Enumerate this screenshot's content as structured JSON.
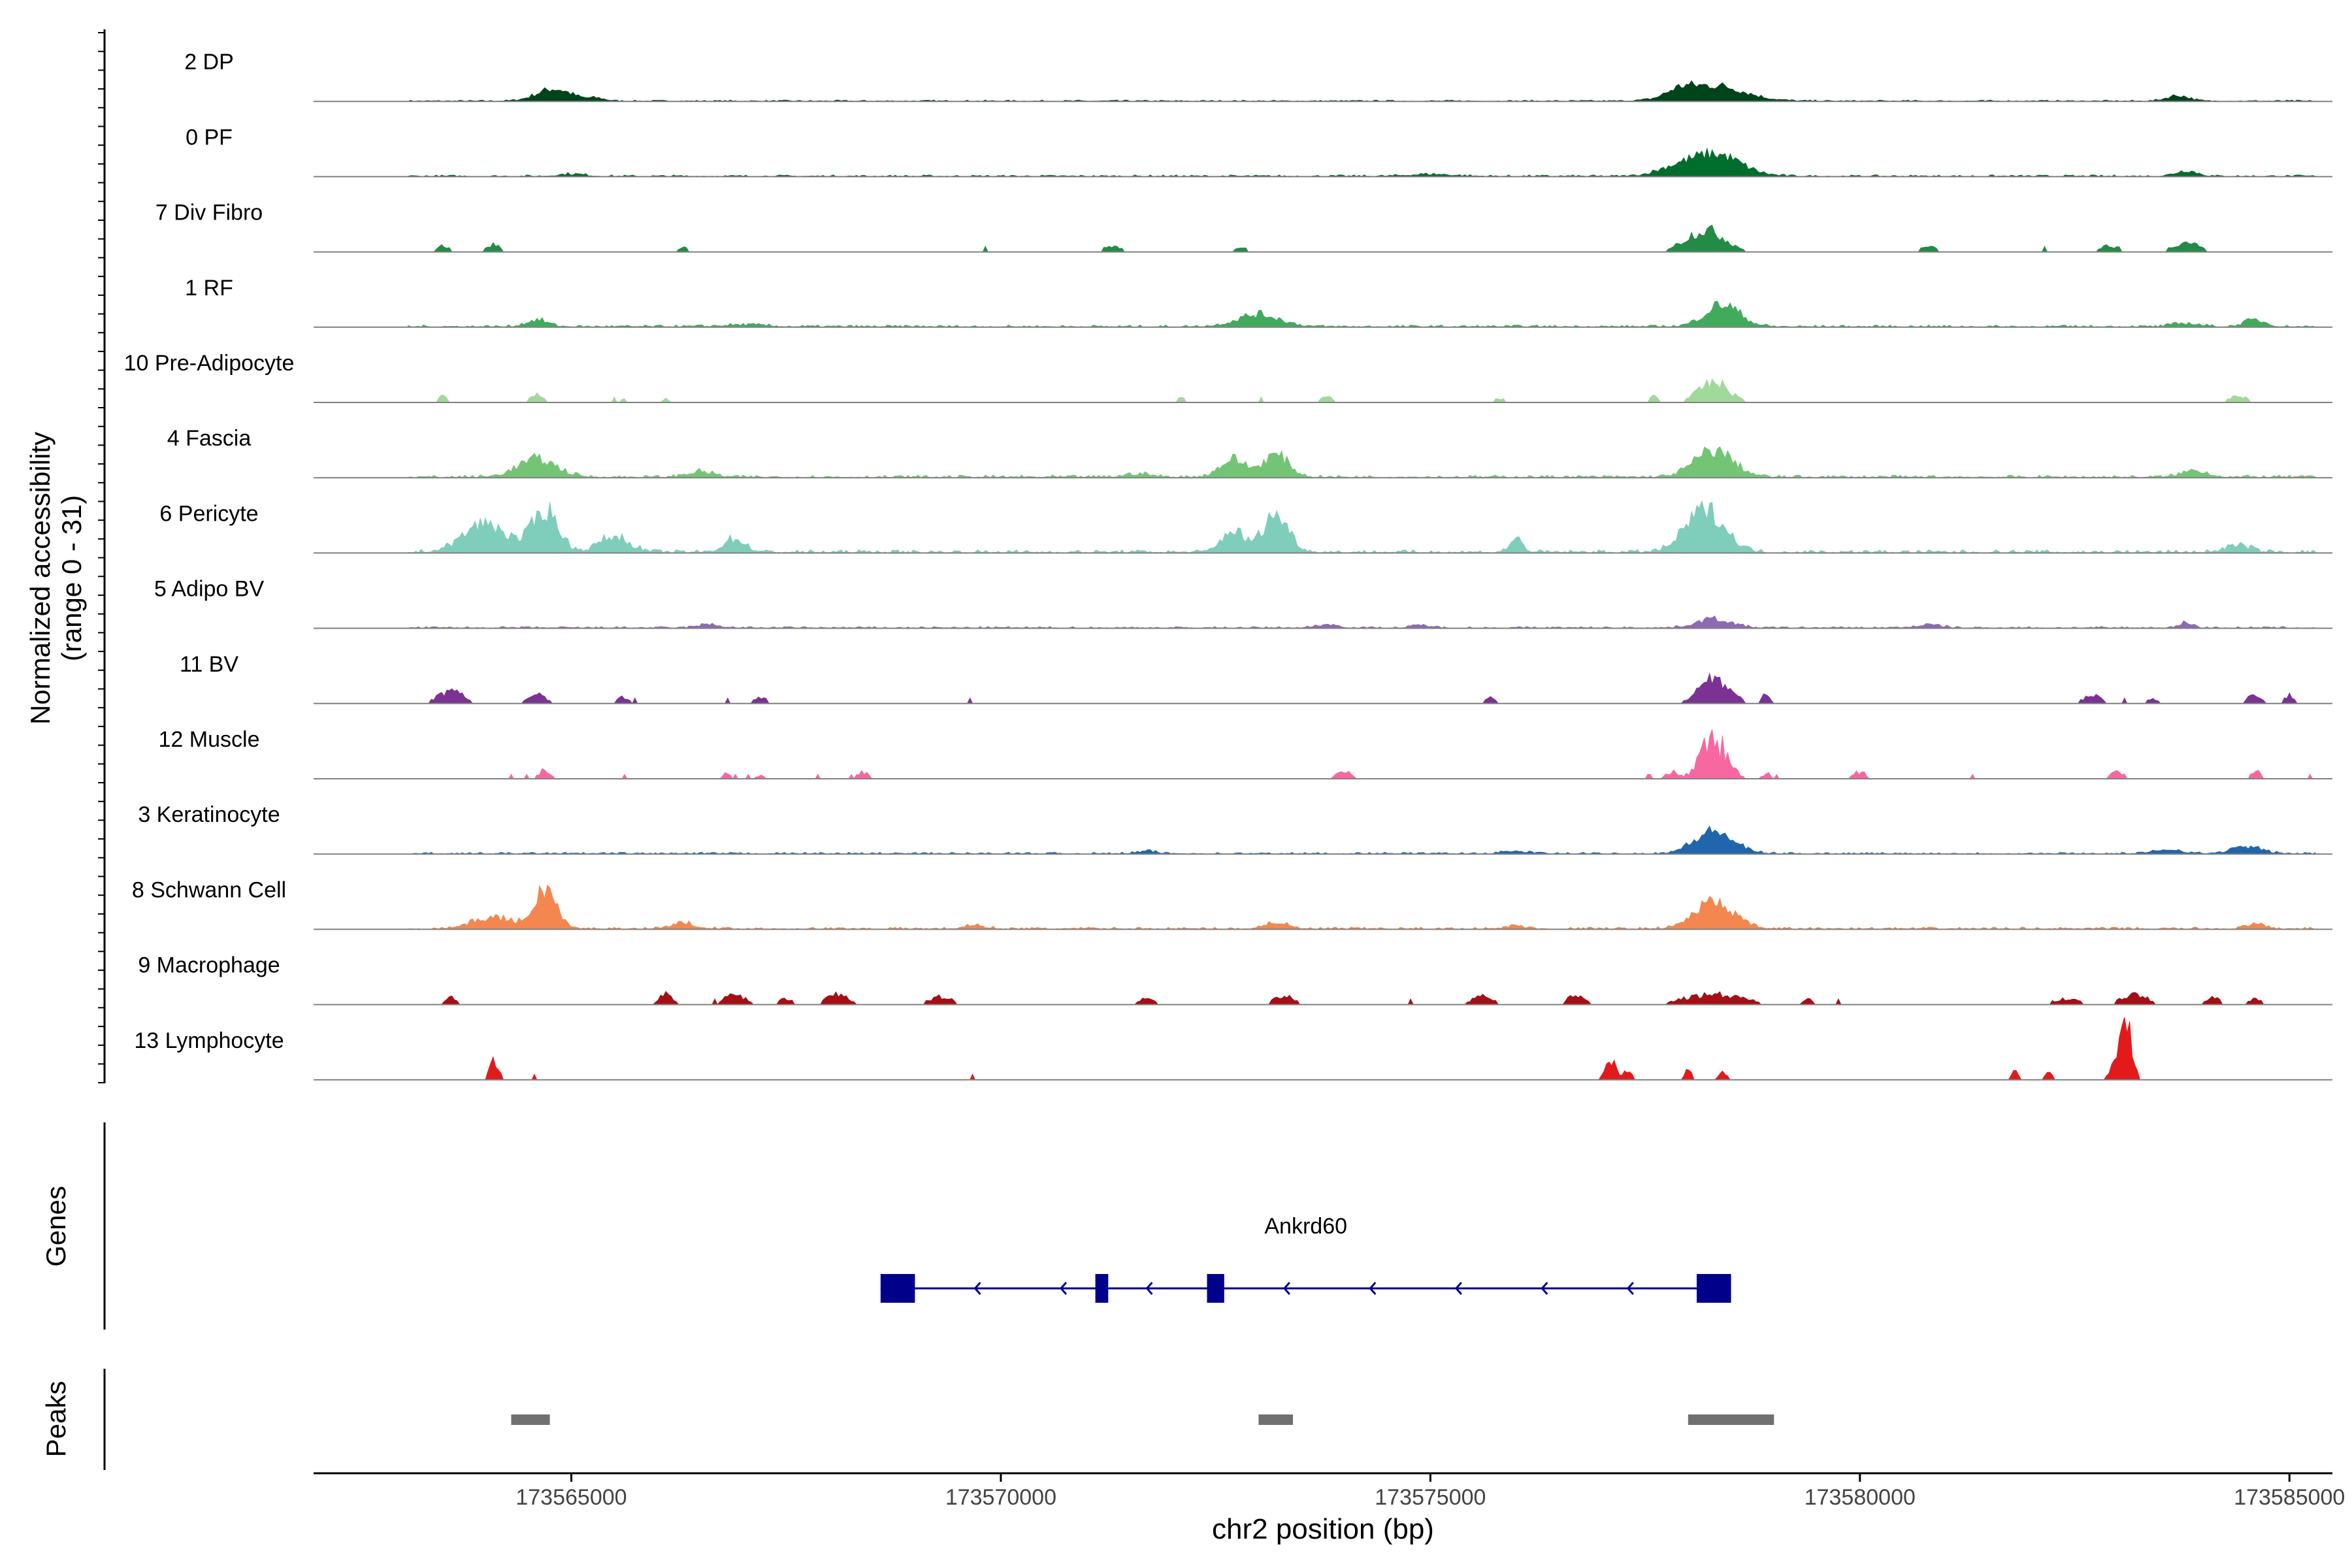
{
  "chart_data": {
    "type": "area",
    "title": "",
    "ylabel_lines": [
      "Normalized accessibility",
      "(range 0 - 31)"
    ],
    "y_range": [
      0,
      31
    ],
    "xlabel": "chr2 position (bp)",
    "x_range": [
      173562000,
      173585500
    ],
    "x_ticks": [
      173565000,
      173570000,
      173575000,
      173580000,
      173585000
    ],
    "x_tick_labels": [
      "173565000",
      "173570000",
      "173575000",
      "173580000",
      "173585000"
    ],
    "tracks": [
      {
        "name": "2 DP",
        "color": "#00441b",
        "style": "smooth",
        "start": 173563100,
        "end": 173585300,
        "base": 0.6,
        "peaks": [
          [
            173564800,
            5.5,
            400
          ],
          [
            173578300,
            7,
            700
          ],
          [
            173583700,
            2.5,
            250
          ],
          [
            173565300,
            1.2,
            200
          ],
          [
            173577900,
            3,
            300
          ]
        ]
      },
      {
        "name": "0 PF",
        "color": "#006d2c",
        "style": "smooth",
        "start": 173563100,
        "end": 173585300,
        "base": 0.8,
        "peaks": [
          [
            173578300,
            10,
            600
          ],
          [
            173583800,
            2.5,
            250
          ],
          [
            173577800,
            2.5,
            400
          ],
          [
            173565000,
            1,
            300
          ],
          [
            173575000,
            0.9,
            500
          ]
        ]
      },
      {
        "name": "7 Div Fibro",
        "color": "#238b45",
        "style": "sparse",
        "start": 173563100,
        "end": 173585300,
        "base": 0.7,
        "peaks": [
          [
            173563500,
            3,
            150
          ],
          [
            173564100,
            4,
            150
          ],
          [
            173571300,
            3,
            200
          ],
          [
            173578200,
            11,
            450
          ],
          [
            173583800,
            5,
            300
          ],
          [
            173582900,
            3,
            250
          ],
          [
            173580800,
            2.5,
            200
          ],
          [
            173566300,
            2,
            150
          ],
          [
            173575200,
            1.5,
            150
          ],
          [
            173572800,
            2,
            200
          ]
        ]
      },
      {
        "name": "1 RF",
        "color": "#41ab5d",
        "style": "smooth",
        "start": 173563100,
        "end": 173585300,
        "base": 1,
        "peaks": [
          [
            173573000,
            5.5,
            500
          ],
          [
            173578400,
            10,
            400
          ],
          [
            173564600,
            3,
            250
          ],
          [
            173584600,
            3,
            250
          ],
          [
            173583800,
            1.5,
            300
          ],
          [
            173567000,
            0.8,
            500
          ]
        ]
      },
      {
        "name": "10 Pre-Adipocyte",
        "color": "#a1d99b",
        "style": "sparse",
        "start": 173563100,
        "end": 173585300,
        "base": 0,
        "peaks": [
          [
            173563500,
            3,
            100
          ],
          [
            173564600,
            4,
            150
          ],
          [
            173578300,
            10,
            350
          ],
          [
            173584400,
            3.5,
            200
          ],
          [
            173577600,
            3,
            100
          ],
          [
            173572100,
            2,
            120
          ],
          [
            173573800,
            3,
            150
          ],
          [
            173566100,
            2,
            100
          ],
          [
            173575800,
            2,
            150
          ],
          [
            173565600,
            2,
            100
          ],
          [
            173583700,
            1.5,
            150
          ]
        ]
      },
      {
        "name": "4 Fascia",
        "color": "#74c476",
        "style": "smooth",
        "start": 173563100,
        "end": 173585300,
        "base": 1.2,
        "peaks": [
          [
            173564600,
            8,
            450
          ],
          [
            173572700,
            8,
            300
          ],
          [
            173573200,
            10,
            300
          ],
          [
            173578300,
            12,
            450
          ],
          [
            173583900,
            3,
            300
          ],
          [
            173566500,
            2.5,
            300
          ],
          [
            173571600,
            1.5,
            300
          ]
        ]
      },
      {
        "name": "6 Pericyte",
        "color": "#7fcdbb",
        "style": "smooth",
        "start": 173563100,
        "end": 173585300,
        "base": 1.5,
        "peaks": [
          [
            173564000,
            13,
            500
          ],
          [
            173564700,
            19,
            300
          ],
          [
            173565500,
            7,
            350
          ],
          [
            173566900,
            6,
            250
          ],
          [
            173573200,
            17,
            300
          ],
          [
            173572700,
            10,
            250
          ],
          [
            173576000,
            6,
            150
          ],
          [
            173578200,
            19,
            450
          ],
          [
            173584400,
            3,
            300
          ]
        ]
      },
      {
        "name": "5 Adipo BV",
        "color": "#8c6bb1",
        "style": "smooth",
        "start": 173563100,
        "end": 173585300,
        "base": 0.8,
        "peaks": [
          [
            173578300,
            4,
            400
          ],
          [
            173583800,
            2.5,
            150
          ],
          [
            173566600,
            1.5,
            250
          ],
          [
            173573800,
            1.5,
            250
          ],
          [
            173580800,
            1.3,
            300
          ],
          [
            173574900,
            1.2,
            200
          ]
        ]
      },
      {
        "name": "11 BV",
        "color": "#7b3294",
        "style": "sparse",
        "start": 173563100,
        "end": 173585300,
        "base": 0,
        "peaks": [
          [
            173563600,
            6,
            300
          ],
          [
            173564600,
            5,
            200
          ],
          [
            173565600,
            3,
            150
          ],
          [
            173567200,
            3,
            150
          ],
          [
            173578300,
            13,
            350
          ],
          [
            173582700,
            4,
            200
          ],
          [
            173584600,
            5,
            150
          ],
          [
            173585000,
            4,
            120
          ],
          [
            173575700,
            3,
            150
          ],
          [
            173578900,
            4,
            100
          ],
          [
            173583400,
            2.5,
            150
          ]
        ]
      },
      {
        "name": "12 Muscle",
        "color": "#f768a1",
        "style": "spiky",
        "start": 173563100,
        "end": 173585300,
        "base": 0,
        "peaks": [
          [
            173564700,
            5,
            120
          ],
          [
            173578300,
            18,
            300
          ],
          [
            173568400,
            3.5,
            120
          ],
          [
            173574000,
            3,
            200
          ],
          [
            173583000,
            3,
            150
          ],
          [
            173584600,
            4,
            100
          ],
          [
            173567200,
            2,
            100
          ],
          [
            173566800,
            2.5,
            100
          ],
          [
            173577800,
            3,
            150
          ],
          [
            173580000,
            3,
            150
          ],
          [
            173578900,
            2.5,
            120
          ]
        ]
      },
      {
        "name": "3 Keratinocyte",
        "color": "#2166ac",
        "style": "smooth",
        "start": 173563100,
        "end": 173585300,
        "base": 0.8,
        "peaks": [
          [
            173578300,
            10,
            450
          ],
          [
            173584500,
            3,
            350
          ],
          [
            173583600,
            2,
            300
          ],
          [
            173576000,
            1,
            300
          ],
          [
            173571700,
            1,
            250
          ]
        ]
      },
      {
        "name": "8 Schwann Cell",
        "color": "#f4874f",
        "style": "smooth",
        "start": 173563100,
        "end": 173585300,
        "base": 1,
        "peaks": [
          [
            173564100,
            5,
            500
          ],
          [
            173564700,
            18,
            250
          ],
          [
            173573200,
            3,
            250
          ],
          [
            173578300,
            12,
            450
          ],
          [
            173566300,
            2.5,
            300
          ],
          [
            173569700,
            1.5,
            250
          ],
          [
            173584600,
            2,
            200
          ],
          [
            173576000,
            1.5,
            200
          ]
        ]
      },
      {
        "name": "9 Macrophage",
        "color": "#a50f15",
        "style": "sparse",
        "start": 173563100,
        "end": 173585300,
        "base": 0,
        "peaks": [
          [
            173563600,
            3.5,
            150
          ],
          [
            173566100,
            6,
            150
          ],
          [
            173566900,
            5,
            250
          ],
          [
            173568100,
            5,
            250
          ],
          [
            173569300,
            4,
            250
          ],
          [
            173571700,
            3,
            200
          ],
          [
            173573300,
            4,
            250
          ],
          [
            173575600,
            4,
            250
          ],
          [
            173576700,
            5,
            200
          ],
          [
            173578300,
            5,
            700
          ],
          [
            173582400,
            3,
            300
          ],
          [
            173583200,
            5,
            300
          ],
          [
            173584100,
            4,
            150
          ],
          [
            173584600,
            3,
            150
          ],
          [
            173579400,
            3,
            120
          ],
          [
            173567500,
            3,
            150
          ]
        ]
      },
      {
        "name": "13 Lymphocyte",
        "color": "#e31a1c",
        "style": "sparse",
        "start": 173563100,
        "end": 173585300,
        "base": 0,
        "peaks": [
          [
            173564100,
            10,
            100
          ],
          [
            173577100,
            10,
            120
          ],
          [
            173577300,
            5,
            100
          ],
          [
            173578000,
            5,
            80
          ],
          [
            173578400,
            5,
            80
          ],
          [
            173581800,
            5,
            80
          ],
          [
            173582200,
            5,
            80
          ],
          [
            173583100,
            29,
            130
          ],
          [
            173582950,
            6,
            120
          ]
        ]
      }
    ],
    "genes": {
      "label": "Genes",
      "name": "Ankrd60",
      "color": "#00008b",
      "strand": "-",
      "span": [
        173568600,
        173578500
      ],
      "exons": [
        [
          173568600,
          173569000
        ],
        [
          173571100,
          173571250
        ],
        [
          173572400,
          173572600
        ],
        [
          173578100,
          173578500
        ]
      ],
      "arrows": [
        173569700,
        173570700,
        173571700,
        173572500,
        173573300,
        173574300,
        173575300,
        173576300,
        173577300
      ]
    },
    "peaks_track": {
      "label": "Peaks",
      "color": "#707070",
      "regions": [
        [
          173564300,
          173564750
        ],
        [
          173573000,
          173573400
        ],
        [
          173578000,
          173579000
        ]
      ]
    }
  }
}
